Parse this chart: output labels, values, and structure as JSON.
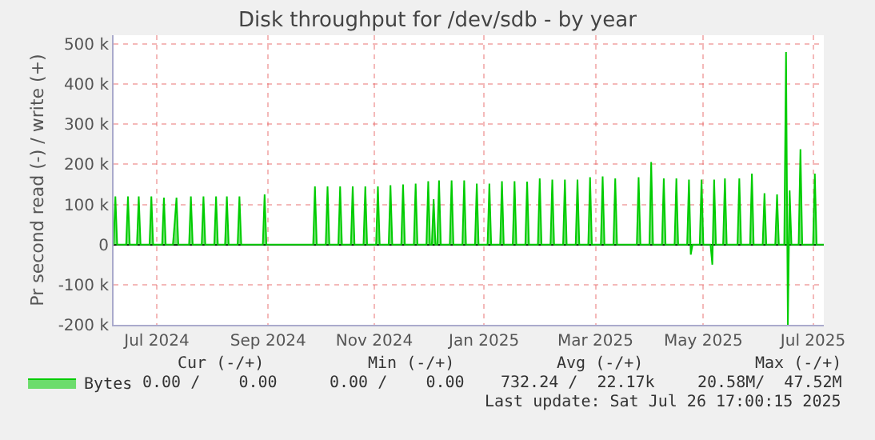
{
  "chart_data": {
    "type": "area",
    "title": "Disk throughput for /dev/sdb - by year",
    "ylabel": "Pr second read (-) / write (+)",
    "xlim": [
      "2024-06-26",
      "2025-07-26"
    ],
    "xticks": [
      {
        "value": "2024-07-20",
        "label": "Jul 2024"
      },
      {
        "value": "2024-09-20",
        "label": "Sep 2024"
      },
      {
        "value": "2024-11-18",
        "label": "Nov 2024"
      },
      {
        "value": "2025-01-18",
        "label": "Jan 2025"
      },
      {
        "value": "2025-03-21",
        "label": "Mar 2025"
      },
      {
        "value": "2025-05-20",
        "label": "May 2025"
      },
      {
        "value": "2025-07-20",
        "label": "Jul 2025"
      }
    ],
    "ylim": [
      -200000,
      522000
    ],
    "yticks": [
      {
        "value": -200000,
        "label": "-200 k"
      },
      {
        "value": -100000,
        "label": "-100 k"
      },
      0,
      {
        "value": 100000,
        "label": "100 k"
      },
      {
        "value": 200000,
        "label": "200 k"
      },
      {
        "value": 300000,
        "label": "300 k"
      },
      {
        "value": 400000,
        "label": "400 k"
      },
      {
        "value": 500000,
        "label": "500 k"
      }
    ],
    "grid": true,
    "legend": "bottom left",
    "series": [
      {
        "name": "Bytes",
        "color": "#00cc00",
        "x": [
          "2024-06-26",
          "2024-06-27",
          "2024-06-28",
          "2024-07-03",
          "2024-07-04",
          "2024-07-05",
          "2024-07-09",
          "2024-07-10",
          "2024-07-11",
          "2024-07-16",
          "2024-07-17",
          "2024-07-18",
          "2024-07-23",
          "2024-07-24",
          "2024-07-25",
          "2024-07-29",
          "2024-07-30",
          "2024-07-31",
          "2024-08-01",
          "2024-08-07",
          "2024-08-08",
          "2024-08-09",
          "2024-08-14",
          "2024-08-15",
          "2024-08-16",
          "2024-08-21",
          "2024-08-22",
          "2024-08-23",
          "2024-08-27",
          "2024-08-28",
          "2024-08-29",
          "2024-09-03",
          "2024-09-04",
          "2024-09-05",
          "2024-09-17",
          "2024-09-18",
          "2024-09-19",
          "2024-10-15",
          "2024-10-16",
          "2024-10-17",
          "2024-10-22",
          "2024-10-23",
          "2024-10-24",
          "2024-10-29",
          "2024-10-30",
          "2024-10-31",
          "2024-11-05",
          "2024-11-06",
          "2024-11-07",
          "2024-11-12",
          "2024-11-13",
          "2024-11-14",
          "2024-11-19",
          "2024-11-20",
          "2024-11-21",
          "2024-11-26",
          "2024-11-27",
          "2024-11-28",
          "2024-12-03",
          "2024-12-04",
          "2024-12-05",
          "2024-12-10",
          "2024-12-11",
          "2024-12-12",
          "2024-12-17",
          "2024-12-18",
          "2024-12-19",
          "2024-12-20",
          "2024-12-21",
          "2024-12-22",
          "2024-12-23",
          "2024-12-24",
          "2024-12-25",
          "2024-12-30",
          "2024-12-31",
          "2025-01-01",
          "2025-01-06",
          "2025-01-07",
          "2025-01-08",
          "2025-01-13",
          "2025-01-14",
          "2025-01-15",
          "2025-01-20",
          "2025-01-21",
          "2025-01-22",
          "2025-01-27",
          "2025-01-28",
          "2025-01-29",
          "2025-02-03",
          "2025-02-04",
          "2025-02-05",
          "2025-02-10",
          "2025-02-11",
          "2025-02-12",
          "2025-02-17",
          "2025-02-18",
          "2025-02-19",
          "2025-02-24",
          "2025-02-25",
          "2025-02-26",
          "2025-03-03",
          "2025-03-04",
          "2025-03-05",
          "2025-03-10",
          "2025-03-11",
          "2025-03-12",
          "2025-03-17",
          "2025-03-18",
          "2025-03-19",
          "2025-03-24",
          "2025-03-25",
          "2025-03-26",
          "2025-03-31",
          "2025-04-01",
          "2025-04-02",
          "2025-04-13",
          "2025-04-14",
          "2025-04-15",
          "2025-04-20",
          "2025-04-21",
          "2025-04-22",
          "2025-04-27",
          "2025-04-28",
          "2025-04-29",
          "2025-05-04",
          "2025-05-05",
          "2025-05-06",
          "2025-05-11",
          "2025-05-12",
          "2025-05-13",
          "2025-05-14",
          "2025-05-18",
          "2025-05-19",
          "2025-05-20",
          "2025-05-24",
          "2025-05-25",
          "2025-05-26",
          "2025-05-27",
          "2025-05-31",
          "2025-06-01",
          "2025-06-02",
          "2025-06-08",
          "2025-06-09",
          "2025-06-10",
          "2025-06-15",
          "2025-06-16",
          "2025-06-17",
          "2025-06-22",
          "2025-06-23",
          "2025-06-24",
          "2025-06-29",
          "2025-06-30",
          "2025-07-01",
          "2025-07-04",
          "2025-07-05",
          "2025-07-06",
          "2025-07-07",
          "2025-07-08",
          "2025-07-12",
          "2025-07-13",
          "2025-07-14",
          "2025-07-20",
          "2025-07-21",
          "2025-07-22",
          "2025-07-26"
        ],
        "values": [
          0,
          120000,
          0,
          0,
          120000,
          0,
          0,
          120000,
          0,
          0,
          120000,
          0,
          0,
          117000,
          0,
          0,
          55000,
          117000,
          0,
          0,
          120000,
          0,
          0,
          120000,
          0,
          0,
          120000,
          0,
          0,
          120000,
          0,
          0,
          120000,
          0,
          0,
          125000,
          0,
          0,
          145000,
          0,
          0,
          145000,
          0,
          0,
          145000,
          0,
          0,
          145000,
          0,
          0,
          145000,
          0,
          0,
          145000,
          0,
          0,
          148000,
          0,
          0,
          150000,
          0,
          0,
          152000,
          0,
          0,
          158000,
          0,
          0,
          113000,
          0,
          0,
          160000,
          0,
          0,
          160000,
          0,
          0,
          160000,
          0,
          0,
          152000,
          0,
          0,
          152000,
          0,
          0,
          158000,
          0,
          0,
          158000,
          0,
          0,
          157000,
          0,
          0,
          165000,
          0,
          0,
          162000,
          0,
          0,
          162000,
          0,
          0,
          162000,
          0,
          0,
          168000,
          0,
          0,
          170000,
          0,
          0,
          165000,
          0,
          0,
          168000,
          0,
          0,
          206000,
          0,
          0,
          165000,
          0,
          0,
          165000,
          0,
          0,
          162000,
          -25000,
          0,
          0,
          162000,
          0,
          0,
          -50000,
          162000,
          0,
          0,
          165000,
          0,
          0,
          165000,
          0,
          0,
          177000,
          0,
          0,
          128000,
          0,
          0,
          125000,
          0,
          0,
          480000,
          -200000,
          135000,
          0,
          0,
          238000,
          0,
          0,
          177000,
          0,
          0
        ]
      }
    ],
    "annotations": [
      "Cur (-/+)",
      "Min (-/+)",
      "Avg (-/+)",
      "Max (-/+)",
      "0.00 /    0.00",
      "0.00 /    0.00",
      "732.24 /  22.17k",
      "20.58M/  47.52M",
      "Last update: Sat Jul 26 17:00:15 2025"
    ]
  }
}
